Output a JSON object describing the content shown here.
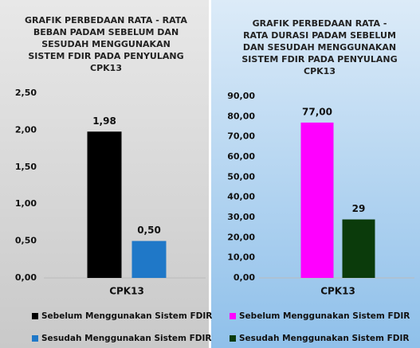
{
  "chart_data": [
    {
      "type": "bar",
      "title": "GRAFIK PERBEDAAN RATA - RATA BEBAN PADAM SEBELUM DAN SESUDAH MENGGUNAKAN SISTEM FDIR PADA PENYULANG CPK13",
      "categories": [
        "CPK13"
      ],
      "series": [
        {
          "name": "Sebelum Menggunakan Sistem FDIR",
          "color": "#000000",
          "values": [
            1.98
          ],
          "value_labels": [
            "1,98"
          ]
        },
        {
          "name": "Sesudah Menggunakan Sistem FDIR",
          "color": "#1f78c8",
          "values": [
            0.5
          ],
          "value_labels": [
            "0,50"
          ]
        }
      ],
      "ylim": [
        0,
        2.5
      ],
      "yticks": [
        {
          "value": 0,
          "label": "0,00"
        },
        {
          "value": 0.5,
          "label": "0,50"
        },
        {
          "value": 1,
          "label": "1,00"
        },
        {
          "value": 1.5,
          "label": "1,50"
        },
        {
          "value": 2,
          "label": "2,00"
        },
        {
          "value": 2.5,
          "label": "2,50"
        }
      ],
      "legend": "bottom"
    },
    {
      "type": "bar",
      "title": "GRAFIK PERBEDAAN RATA - RATA DURASI PADAM SEBELUM DAN SESUDAH MENGGUNAKAN SISTEM FDIR PADA PENYULANG CPK13",
      "categories": [
        "CPK13"
      ],
      "series": [
        {
          "name": "Sebelum Menggunakan Sistem FDIR",
          "color": "#ff00ff",
          "values": [
            77
          ],
          "value_labels": [
            "77,00"
          ]
        },
        {
          "name": "Sesudah Menggunakan Sistem FDIR",
          "color": "#0b3b0b",
          "values": [
            29
          ]
        }
      ],
      "ylim": [
        0,
        90
      ],
      "yticks": [
        {
          "value": 0,
          "label": "0,00"
        },
        {
          "value": 10,
          "label": "10,00"
        },
        {
          "value": 20,
          "label": "20,00"
        },
        {
          "value": 30,
          "label": "30,00"
        },
        {
          "value": 40,
          "label": "40,00"
        },
        {
          "value": 50,
          "label": "50,00"
        },
        {
          "value": 60,
          "label": "60,00"
        },
        {
          "value": 70,
          "label": "70,00"
        },
        {
          "value": 80,
          "label": "80,00"
        },
        {
          "value": 90,
          "label": "90,00"
        }
      ],
      "legend": "bottom"
    }
  ]
}
